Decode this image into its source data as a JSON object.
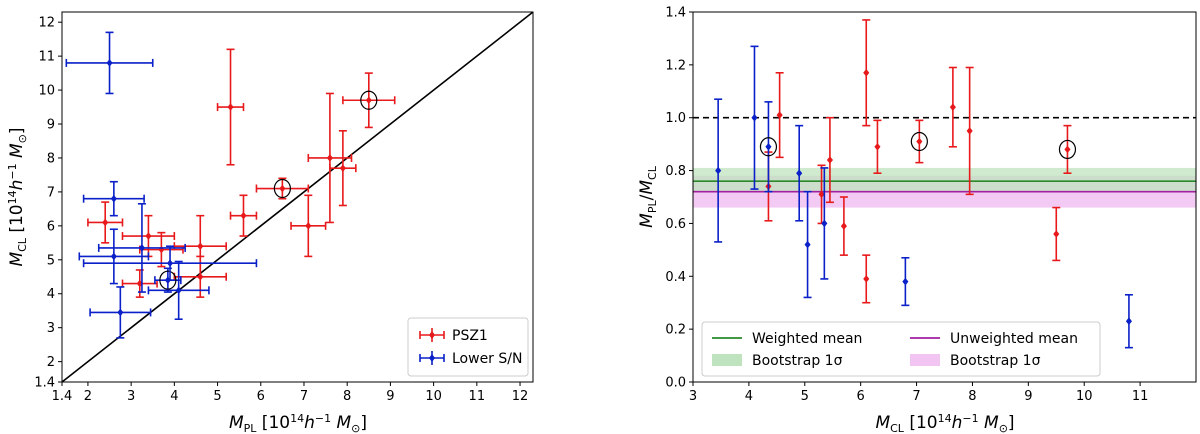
{
  "chart_data": [
    {
      "type": "scatter",
      "title": "",
      "xlabel": "M_PL [10^14 h^-1 M_⊙]",
      "ylabel": "M_CL [10^14 h^-1 M_⊙]",
      "xlim": [
        1.4,
        12.3
      ],
      "ylim": [
        1.4,
        12.3
      ],
      "xticks": [
        "1.4",
        "2",
        "3",
        "4",
        "5",
        "6",
        "7",
        "8",
        "9",
        "10",
        "11",
        "12"
      ],
      "yticks": [
        "1.4",
        "2",
        "3",
        "4",
        "5",
        "6",
        "7",
        "8",
        "9",
        "10",
        "11",
        "12"
      ],
      "grid": false,
      "legend_position": "lower-right",
      "reference_line": "y = x",
      "series": [
        {
          "name": "PSZ1",
          "color": "#e8191b",
          "points": [
            {
              "x": 2.4,
              "y": 6.1,
              "xerr": 0.4,
              "yerr": 0.6
            },
            {
              "x": 3.2,
              "y": 4.3,
              "xerr": 0.4,
              "yerr": 0.4
            },
            {
              "x": 3.4,
              "y": 5.7,
              "xerr": 0.6,
              "yerr": 0.6
            },
            {
              "x": 3.7,
              "y": 5.3,
              "xerr": 0.5,
              "yerr": 0.5
            },
            {
              "x": 4.6,
              "y": 5.4,
              "xerr": 0.6,
              "yerr": 0.9
            },
            {
              "x": 4.6,
              "y": 4.5,
              "xerr": 0.6,
              "yerr": 0.6
            },
            {
              "x": 5.3,
              "y": 9.5,
              "xerr": 0.3,
              "yerr": 1.7
            },
            {
              "x": 5.6,
              "y": 6.3,
              "xerr": 0.3,
              "yerr": 0.6
            },
            {
              "x": 6.5,
              "y": 7.1,
              "xerr": 0.6,
              "yerr": 0.3,
              "circled": true
            },
            {
              "x": 7.1,
              "y": 6.0,
              "xerr": 0.4,
              "yerr": 0.9
            },
            {
              "x": 7.6,
              "y": 8.0,
              "xerr": 0.5,
              "yerr": 1.9
            },
            {
              "x": 7.9,
              "y": 7.7,
              "xerr": 0.3,
              "yerr": 1.1
            },
            {
              "x": 8.5,
              "y": 9.7,
              "xerr": 0.6,
              "yerr": 0.8,
              "circled": true
            }
          ]
        },
        {
          "name": "Lower S/N",
          "color": "#0a20c8",
          "points": [
            {
              "x": 2.5,
              "y": 10.8,
              "xerr": 1.0,
              "yerr": 0.9
            },
            {
              "x": 2.6,
              "y": 6.8,
              "xerr": 0.7,
              "yerr": 0.5
            },
            {
              "x": 2.6,
              "y": 5.1,
              "xerr": 0.8,
              "yerr": 0.8
            },
            {
              "x": 2.75,
              "y": 3.45,
              "xerr": 0.7,
              "yerr": 0.75
            },
            {
              "x": 3.25,
              "y": 5.35,
              "xerr": 1.0,
              "yerr": 1.3
            },
            {
              "x": 3.85,
              "y": 4.4,
              "xerr": 0.3,
              "yerr": 0.35,
              "circled": true
            },
            {
              "x": 3.9,
              "y": 4.9,
              "xerr": 2.0,
              "yerr": 0.5
            },
            {
              "x": 4.1,
              "y": 4.1,
              "xerr": 0.7,
              "yerr": 0.85
            }
          ]
        }
      ]
    },
    {
      "type": "scatter",
      "title": "",
      "xlabel": "M_CL [10^14 h^-1 M_⊙]",
      "ylabel": "M_PL/M_CL",
      "xlim": [
        3,
        12
      ],
      "ylim": [
        0.0,
        1.4
      ],
      "xticks": [
        "3",
        "4",
        "5",
        "6",
        "7",
        "8",
        "9",
        "10",
        "11"
      ],
      "yticks": [
        "0.0",
        "0.2",
        "0.4",
        "0.6",
        "0.8",
        "1.0",
        "1.2",
        "1.4"
      ],
      "grid": false,
      "legend_position": "lower-center",
      "reference_line": "y = 1.0 (dashed)",
      "weighted_mean": {
        "value": 0.76,
        "band": [
          0.72,
          0.81
        ],
        "color": "#2a8a2a",
        "band_color": "#bfe3bf"
      },
      "unweighted_mean": {
        "value": 0.72,
        "band": [
          0.66,
          0.78
        ],
        "color": "#a020a0",
        "band_color": "#f2c4f2"
      },
      "series": [
        {
          "color": "#e8191b",
          "points": [
            {
              "x": 4.35,
              "y": 0.74,
              "yerr": 0.13
            },
            {
              "x": 4.55,
              "y": 1.01,
              "yerr": 0.16
            },
            {
              "x": 5.3,
              "y": 0.71,
              "yerr": 0.11
            },
            {
              "x": 5.45,
              "y": 0.84,
              "yerr": 0.16
            },
            {
              "x": 5.7,
              "y": 0.59,
              "yerr": 0.11
            },
            {
              "x": 6.1,
              "y": 1.17,
              "yerr": 0.2
            },
            {
              "x": 6.1,
              "y": 0.39,
              "yerr": 0.09
            },
            {
              "x": 6.3,
              "y": 0.89,
              "yerr": 0.1
            },
            {
              "x": 7.05,
              "y": 0.91,
              "yerr": 0.08,
              "circled": true
            },
            {
              "x": 7.65,
              "y": 1.04,
              "yerr": 0.15
            },
            {
              "x": 7.95,
              "y": 0.95,
              "yerr": 0.24
            },
            {
              "x": 9.5,
              "y": 0.56,
              "yerr": 0.1
            },
            {
              "x": 9.7,
              "y": 0.88,
              "yerr": 0.09,
              "circled": true
            }
          ]
        },
        {
          "color": "#0a20c8",
          "points": [
            {
              "x": 3.45,
              "y": 0.8,
              "yerr": 0.27
            },
            {
              "x": 4.1,
              "y": 1.0,
              "yerr": 0.27
            },
            {
              "x": 4.35,
              "y": 0.89,
              "yerr": 0.17,
              "circled": true
            },
            {
              "x": 4.9,
              "y": 0.79,
              "yerr": 0.18
            },
            {
              "x": 5.05,
              "y": 0.52,
              "yerr": 0.2
            },
            {
              "x": 5.35,
              "y": 0.6,
              "yerr": 0.21
            },
            {
              "x": 6.8,
              "y": 0.38,
              "yerr": 0.09
            },
            {
              "x": 10.8,
              "y": 0.23,
              "yerr": 0.1
            }
          ]
        }
      ],
      "legend": [
        {
          "label": "Weighted mean",
          "kind": "line",
          "color": "#2a8a2a"
        },
        {
          "label": "Unweighted mean",
          "kind": "line",
          "color": "#a020a0"
        },
        {
          "label": "Bootstrap 1σ",
          "kind": "patch",
          "color": "#bfe3bf"
        },
        {
          "label": "Bootstrap 1σ",
          "kind": "patch",
          "color": "#f2c4f2"
        }
      ]
    }
  ]
}
